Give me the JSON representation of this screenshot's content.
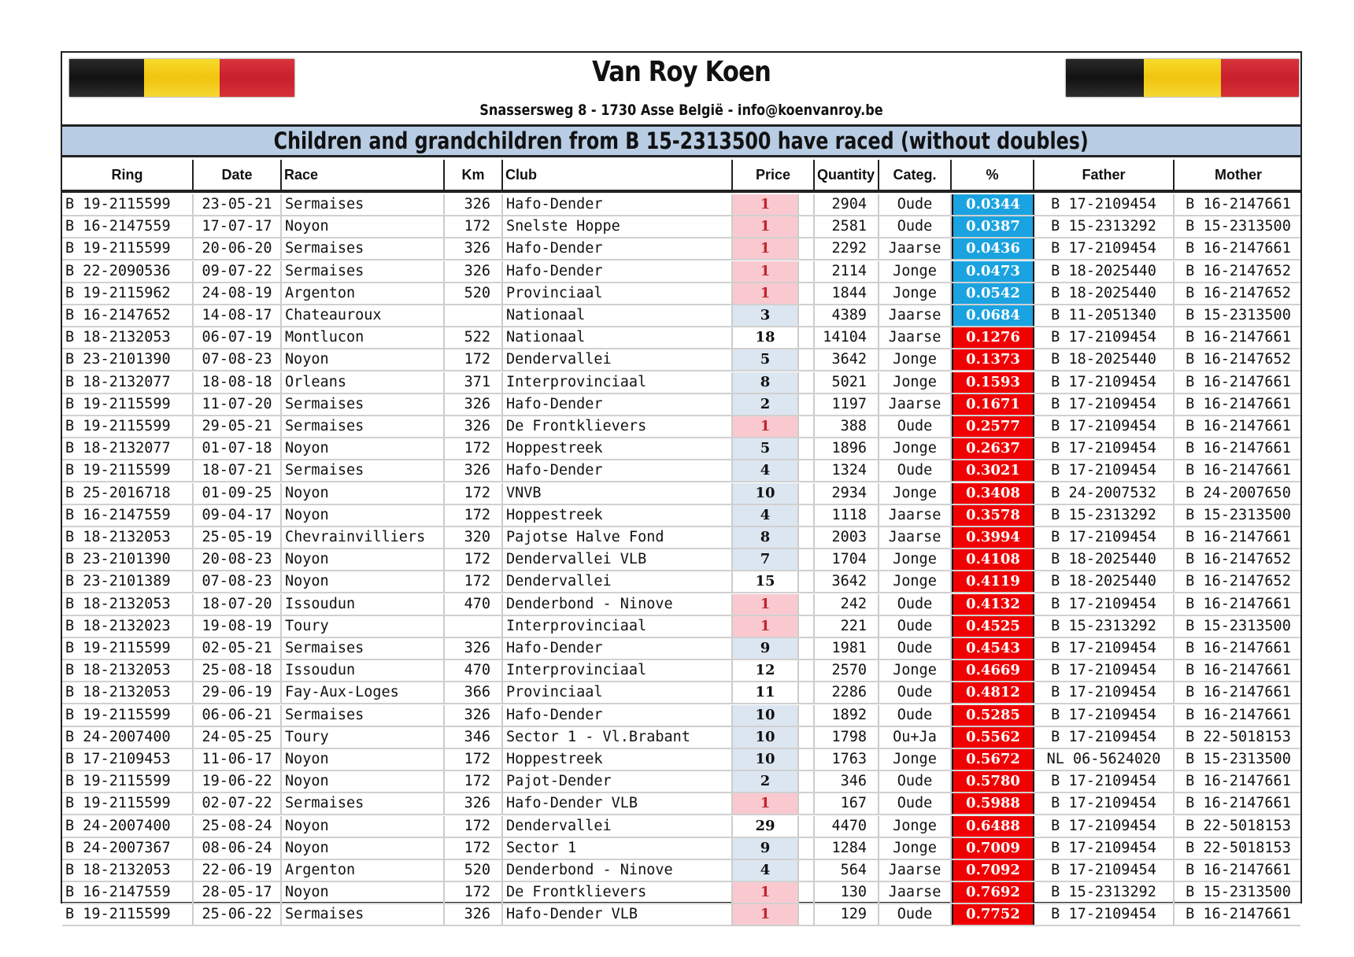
{
  "header": {
    "title": "Van Roy Koen",
    "address": "Snassersweg 8 - 1730 Asse België - info@koenvanroy.be",
    "banner": "Children and grandchildren from B 15-2313500 have raced (without doubles)",
    "flag_icon": "belgian-flag"
  },
  "colors": {
    "banner_bg": "#b8cce4",
    "price_first": "#f9c9cf",
    "price_first_text": "#c0262d",
    "price_top10": "#dce6f1",
    "pct_low": "#1aa3e0",
    "pct_high": "#f00000"
  },
  "columns": [
    "Ring",
    "Date",
    "Race",
    "Km",
    "Club",
    "Price",
    "Quantity",
    "Categ.",
    "%",
    "Father",
    "Mother"
  ],
  "rows": [
    [
      "B 19-2115599",
      "23-05-21",
      "Sermaises",
      "326",
      "Hafo-Dender",
      "1",
      "2904",
      "Oude",
      "0.0344",
      "B 17-2109454",
      "B 16-2147661"
    ],
    [
      "B 16-2147559",
      "17-07-17",
      "Noyon",
      "172",
      "Snelste Hoppe",
      "1",
      "2581",
      "Oude",
      "0.0387",
      "B 15-2313292",
      "B 15-2313500"
    ],
    [
      "B 19-2115599",
      "20-06-20",
      "Sermaises",
      "326",
      "Hafo-Dender",
      "1",
      "2292",
      "Jaarse",
      "0.0436",
      "B 17-2109454",
      "B 16-2147661"
    ],
    [
      "B 22-2090536",
      "09-07-22",
      "Sermaises",
      "326",
      "Hafo-Dender",
      "1",
      "2114",
      "Jonge",
      "0.0473",
      "B 18-2025440",
      "B 16-2147652"
    ],
    [
      "B 19-2115962",
      "24-08-19",
      "Argenton",
      "520",
      "Provinciaal",
      "1",
      "1844",
      "Jonge",
      "0.0542",
      "B 18-2025440",
      "B 16-2147652"
    ],
    [
      "B 16-2147652",
      "14-08-17",
      "Chateauroux",
      "",
      "Nationaal",
      "3",
      "4389",
      "Jaarse",
      "0.0684",
      "B 11-2051340",
      "B 15-2313500"
    ],
    [
      "B 18-2132053",
      "06-07-19",
      "Montlucon",
      "522",
      "Nationaal",
      "18",
      "14104",
      "Jaarse",
      "0.1276",
      "B 17-2109454",
      "B 16-2147661"
    ],
    [
      "B 23-2101390",
      "07-08-23",
      "Noyon",
      "172",
      "Dendervallei",
      "5",
      "3642",
      "Jonge",
      "0.1373",
      "B 18-2025440",
      "B 16-2147652"
    ],
    [
      "B 18-2132077",
      "18-08-18",
      "Orleans",
      "371",
      "Interprovinciaal",
      "8",
      "5021",
      "Jonge",
      "0.1593",
      "B 17-2109454",
      "B 16-2147661"
    ],
    [
      "B 19-2115599",
      "11-07-20",
      "Sermaises",
      "326",
      "Hafo-Dender",
      "2",
      "1197",
      "Jaarse",
      "0.1671",
      "B 17-2109454",
      "B 16-2147661"
    ],
    [
      "B 19-2115599",
      "29-05-21",
      "Sermaises",
      "326",
      "De Frontklievers",
      "1",
      "388",
      "Oude",
      "0.2577",
      "B 17-2109454",
      "B 16-2147661"
    ],
    [
      "B 18-2132077",
      "01-07-18",
      "Noyon",
      "172",
      "Hoppestreek",
      "5",
      "1896",
      "Jonge",
      "0.2637",
      "B 17-2109454",
      "B 16-2147661"
    ],
    [
      "B 19-2115599",
      "18-07-21",
      "Sermaises",
      "326",
      "Hafo-Dender",
      "4",
      "1324",
      "Oude",
      "0.3021",
      "B 17-2109454",
      "B 16-2147661"
    ],
    [
      "B 25-2016718",
      "01-09-25",
      "Noyon",
      "172",
      "VNVB",
      "10",
      "2934",
      "Jonge",
      "0.3408",
      "B 24-2007532",
      "B 24-2007650"
    ],
    [
      "B 16-2147559",
      "09-04-17",
      "Noyon",
      "172",
      "Hoppestreek",
      "4",
      "1118",
      "Jaarse",
      "0.3578",
      "B 15-2313292",
      "B 15-2313500"
    ],
    [
      "B 18-2132053",
      "25-05-19",
      "Chevrainvilliers",
      "320",
      "Pajotse Halve Fond",
      "8",
      "2003",
      "Jaarse",
      "0.3994",
      "B 17-2109454",
      "B 16-2147661"
    ],
    [
      "B 23-2101390",
      "20-08-23",
      "Noyon",
      "172",
      "Dendervallei VLB",
      "7",
      "1704",
      "Jonge",
      "0.4108",
      "B 18-2025440",
      "B 16-2147652"
    ],
    [
      "B 23-2101389",
      "07-08-23",
      "Noyon",
      "172",
      "Dendervallei",
      "15",
      "3642",
      "Jonge",
      "0.4119",
      "B 18-2025440",
      "B 16-2147652"
    ],
    [
      "B 18-2132053",
      "18-07-20",
      "Issoudun",
      "470",
      "Denderbond - Ninove",
      "1",
      "242",
      "Oude",
      "0.4132",
      "B 17-2109454",
      "B 16-2147661"
    ],
    [
      "B 18-2132023",
      "19-08-19",
      "Toury",
      "",
      "Interprovinciaal",
      "1",
      "221",
      "Oude",
      "0.4525",
      "B 15-2313292",
      "B 15-2313500"
    ],
    [
      "B 19-2115599",
      "02-05-21",
      "Sermaises",
      "326",
      "Hafo-Dender",
      "9",
      "1981",
      "Oude",
      "0.4543",
      "B 17-2109454",
      "B 16-2147661"
    ],
    [
      "B 18-2132053",
      "25-08-18",
      "Issoudun",
      "470",
      "Interprovinciaal",
      "12",
      "2570",
      "Jonge",
      "0.4669",
      "B 17-2109454",
      "B 16-2147661"
    ],
    [
      "B 18-2132053",
      "29-06-19",
      "Fay-Aux-Loges",
      "366",
      "Provinciaal",
      "11",
      "2286",
      "Oude",
      "0.4812",
      "B 17-2109454",
      "B 16-2147661"
    ],
    [
      "B 19-2115599",
      "06-06-21",
      "Sermaises",
      "326",
      "Hafo-Dender",
      "10",
      "1892",
      "Oude",
      "0.5285",
      "B 17-2109454",
      "B 16-2147661"
    ],
    [
      "B 24-2007400",
      "24-05-25",
      "Toury",
      "346",
      "Sector 1 - Vl.Brabant",
      "10",
      "1798",
      "Ou+Ja",
      "0.5562",
      "B 17-2109454",
      "B 22-5018153"
    ],
    [
      "B 17-2109453",
      "11-06-17",
      "Noyon",
      "172",
      "Hoppestreek",
      "10",
      "1763",
      "Jonge",
      "0.5672",
      "NL 06-5624020",
      "B 15-2313500"
    ],
    [
      "B 19-2115599",
      "19-06-22",
      "Noyon",
      "172",
      "Pajot-Dender",
      "2",
      "346",
      "Oude",
      "0.5780",
      "B 17-2109454",
      "B 16-2147661"
    ],
    [
      "B 19-2115599",
      "02-07-22",
      "Sermaises",
      "326",
      "Hafo-Dender VLB",
      "1",
      "167",
      "Oude",
      "0.5988",
      "B 17-2109454",
      "B 16-2147661"
    ],
    [
      "B 24-2007400",
      "25-08-24",
      "Noyon",
      "172",
      "Dendervallei",
      "29",
      "4470",
      "Jonge",
      "0.6488",
      "B 17-2109454",
      "B 22-5018153"
    ],
    [
      "B 24-2007367",
      "08-06-24",
      "Noyon",
      "172",
      "Sector 1",
      "9",
      "1284",
      "Jonge",
      "0.7009",
      "B 17-2109454",
      "B 22-5018153"
    ],
    [
      "B 18-2132053",
      "22-06-19",
      "Argenton",
      "520",
      "Denderbond - Ninove",
      "4",
      "564",
      "Jaarse",
      "0.7092",
      "B 17-2109454",
      "B 16-2147661"
    ],
    [
      "B 16-2147559",
      "28-05-17",
      "Noyon",
      "172",
      "De Frontklievers",
      "1",
      "130",
      "Jaarse",
      "0.7692",
      "B 15-2313292",
      "B 15-2313500"
    ],
    [
      "B 19-2115599",
      "25-06-22",
      "Sermaises",
      "326",
      "Hafo-Dender VLB",
      "1",
      "129",
      "Oude",
      "0.7752",
      "B 17-2109454",
      "B 16-2147661"
    ]
  ]
}
